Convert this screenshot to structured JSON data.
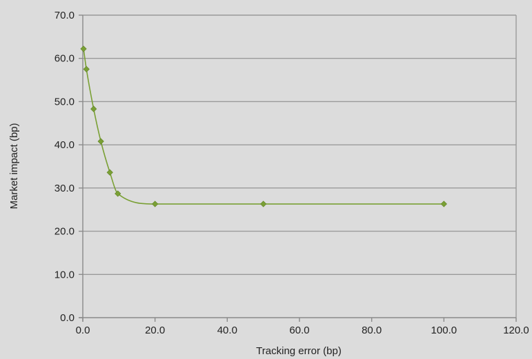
{
  "chart_data": {
    "type": "scatter",
    "title": "",
    "xlabel": "Tracking error (bp)",
    "ylabel": "Market impact (bp)",
    "xlim": [
      0,
      120
    ],
    "ylim": [
      0,
      70
    ],
    "x_ticks": [
      0,
      20,
      40,
      60,
      80,
      100,
      120
    ],
    "y_ticks": [
      0,
      10,
      20,
      30,
      40,
      50,
      60,
      70
    ],
    "x_tick_labels": [
      "0.0",
      "20.0",
      "40.0",
      "60.0",
      "80.0",
      "100.0",
      "120.0"
    ],
    "y_tick_labels": [
      "0.0",
      "10.0",
      "20.0",
      "30.0",
      "40.0",
      "50.0",
      "60.0",
      "70.0"
    ],
    "grid": "horizontal",
    "smooth": true,
    "colors": {
      "series": "#7aa035",
      "grid": "#9a9a9a",
      "background": "#dcdcdc"
    },
    "series": [
      {
        "x": [
          0.2,
          1.0,
          3.0,
          5.0,
          7.5,
          9.7,
          20.0,
          50.0,
          100.0
        ],
        "y": [
          62.2,
          57.5,
          48.3,
          40.8,
          33.6,
          28.7,
          26.3,
          26.3,
          26.3
        ]
      }
    ]
  }
}
